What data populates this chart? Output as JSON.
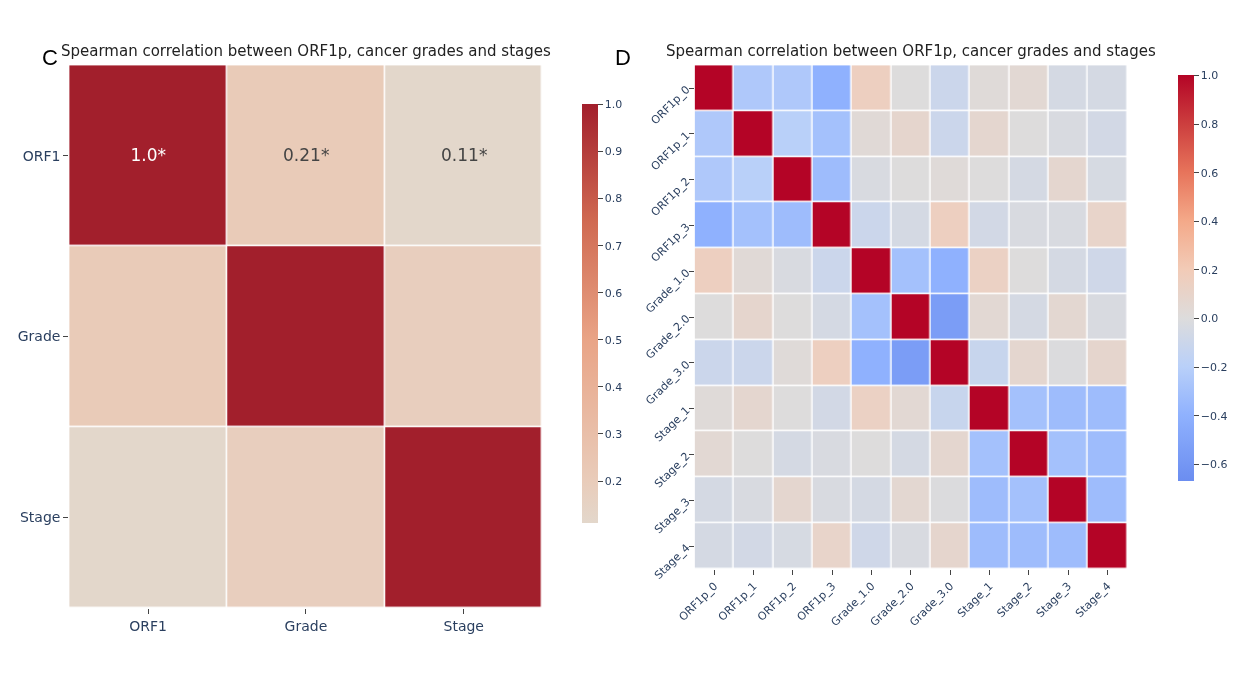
{
  "chart_data": [
    {
      "type": "heatmap",
      "title": "Spearman correlation between ORF1p, cancer grades and stages",
      "annotations": [
        "C"
      ],
      "categories": [
        "ORF1",
        "Grade",
        "Stage"
      ],
      "y_categories": [
        "ORF1",
        "Grade",
        "Stage"
      ],
      "cells": [
        [
          1.0,
          0.21,
          0.11
        ],
        [
          0.21,
          1.0,
          0.18
        ],
        [
          0.11,
          0.18,
          1.0
        ]
      ],
      "cell_labels": [
        [
          "1.0*",
          "0.21*",
          "0.11*"
        ],
        [
          null,
          null,
          null
        ],
        [
          null,
          null,
          null
        ]
      ],
      "clim": [
        0.11,
        1.0
      ],
      "cticks": [
        0.2,
        0.3,
        0.4,
        0.5,
        0.6,
        0.7,
        0.8,
        0.9,
        {
          "value": 1,
          "label": "1.0"
        }
      ]
    },
    {
      "type": "heatmap",
      "title": "Spearman correlation between ORF1p, cancer grades and stages",
      "annotations": [
        "D"
      ],
      "categories": [
        "ORF1p_0",
        "ORF1p_1",
        "ORF1p_2",
        "ORF1p_3",
        "Grade_1.0",
        "Grade_2.0",
        "Grade_3.0",
        "Stage_1",
        "Stage_2",
        "Stage_3",
        "Stage_4"
      ],
      "y_categories": [
        "ORF1p_0",
        "ORF1p_1",
        "ORF1p_2",
        "ORF1p_3",
        "Grade_1.0",
        "Grade_2.0",
        "Grade_3.0",
        "Stage_1",
        "Stage_2",
        "Stage_3",
        "Stage_4"
      ],
      "cells": [
        [
          1.0,
          -0.25,
          -0.25,
          -0.4,
          0.15,
          0.0,
          -0.1,
          0.02,
          0.05,
          -0.05,
          -0.05
        ],
        [
          -0.25,
          1.0,
          -0.2,
          -0.3,
          0.03,
          0.08,
          -0.1,
          0.07,
          0.0,
          -0.03,
          -0.06
        ],
        [
          -0.25,
          -0.2,
          1.0,
          -0.33,
          -0.03,
          0.0,
          0.02,
          0.0,
          -0.05,
          0.07,
          -0.04
        ],
        [
          -0.4,
          -0.3,
          -0.33,
          1.0,
          -0.1,
          -0.05,
          0.15,
          -0.06,
          -0.03,
          -0.03,
          0.1
        ],
        [
          0.15,
          0.03,
          -0.03,
          -0.1,
          1.0,
          -0.3,
          -0.4,
          0.13,
          0.0,
          -0.05,
          -0.08
        ],
        [
          0.0,
          0.08,
          0.0,
          -0.05,
          -0.3,
          1.0,
          -0.55,
          0.05,
          -0.05,
          0.06,
          -0.03
        ],
        [
          -0.1,
          -0.1,
          0.02,
          0.15,
          -0.4,
          -0.55,
          1.0,
          -0.12,
          0.07,
          -0.01,
          0.08
        ],
        [
          0.02,
          0.07,
          0.0,
          -0.06,
          0.13,
          0.05,
          -0.12,
          1.0,
          -0.3,
          -0.33,
          -0.33
        ],
        [
          0.05,
          0.0,
          -0.05,
          -0.03,
          0.0,
          -0.05,
          0.07,
          -0.3,
          1.0,
          -0.3,
          -0.33
        ],
        [
          -0.05,
          -0.03,
          0.07,
          -0.03,
          -0.05,
          0.06,
          -0.01,
          -0.33,
          -0.3,
          1.0,
          -0.33
        ],
        [
          -0.05,
          -0.06,
          -0.04,
          0.1,
          -0.08,
          -0.03,
          0.08,
          -0.33,
          -0.33,
          -0.33,
          1.0
        ]
      ],
      "clim": [
        -0.67,
        1.0
      ],
      "cticks": [
        {
          "value": -0.6,
          "label": "−0.6"
        },
        {
          "value": -0.4,
          "label": "−0.4"
        },
        {
          "value": -0.2,
          "label": "−0.2"
        },
        {
          "value": 0,
          "label": "0.0"
        },
        0.2,
        0.4,
        0.6,
        0.8,
        {
          "value": 1,
          "label": "1.0"
        }
      ]
    }
  ]
}
